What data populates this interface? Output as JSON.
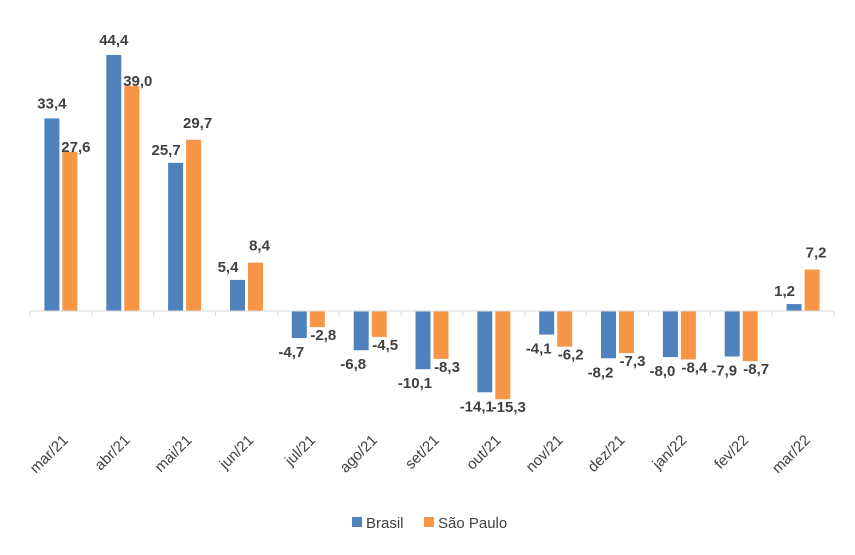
{
  "chart_data": {
    "type": "bar",
    "categories": [
      "mar/21",
      "abr/21",
      "mai/21",
      "jun/21",
      "jul/21",
      "ago/21",
      "set/21",
      "out/21",
      "nov/21",
      "dez/21",
      "jan/22",
      "fev/22",
      "mar/22"
    ],
    "categories_label_rotation": "diagonal",
    "series": [
      {
        "name": "Brasil",
        "color": "#4F81BD",
        "values": [
          33.4,
          44.4,
          25.7,
          5.4,
          -4.7,
          -6.8,
          -10.1,
          -14.1,
          -4.1,
          -8.2,
          -8.0,
          -7.9,
          1.2
        ],
        "labels": [
          "33,4",
          "44,4",
          "25,7",
          "5,4",
          "-4,7",
          "-6,8",
          "-10,1",
          "-14,1",
          "-4,1",
          "-8,2",
          "-8,0",
          "-7,9",
          "1,2"
        ]
      },
      {
        "name": "São Paulo",
        "color": "#F79646",
        "values": [
          27.6,
          39.0,
          29.7,
          8.4,
          -2.8,
          -4.5,
          -8.3,
          -15.3,
          -6.2,
          -7.3,
          -8.4,
          -8.7,
          7.2
        ],
        "labels": [
          "27,6",
          "39,0",
          "29,7",
          "8,4",
          "-2,8",
          "-4,5",
          "-8,3",
          "-15,3",
          "-6,2",
          "-7,3",
          "-8,4",
          "-8,7",
          "7,2"
        ]
      }
    ],
    "title": "",
    "xlabel": "",
    "ylabel": "",
    "ylim": [
      -20,
      50
    ],
    "grid": false,
    "legend_position": "bottom"
  }
}
